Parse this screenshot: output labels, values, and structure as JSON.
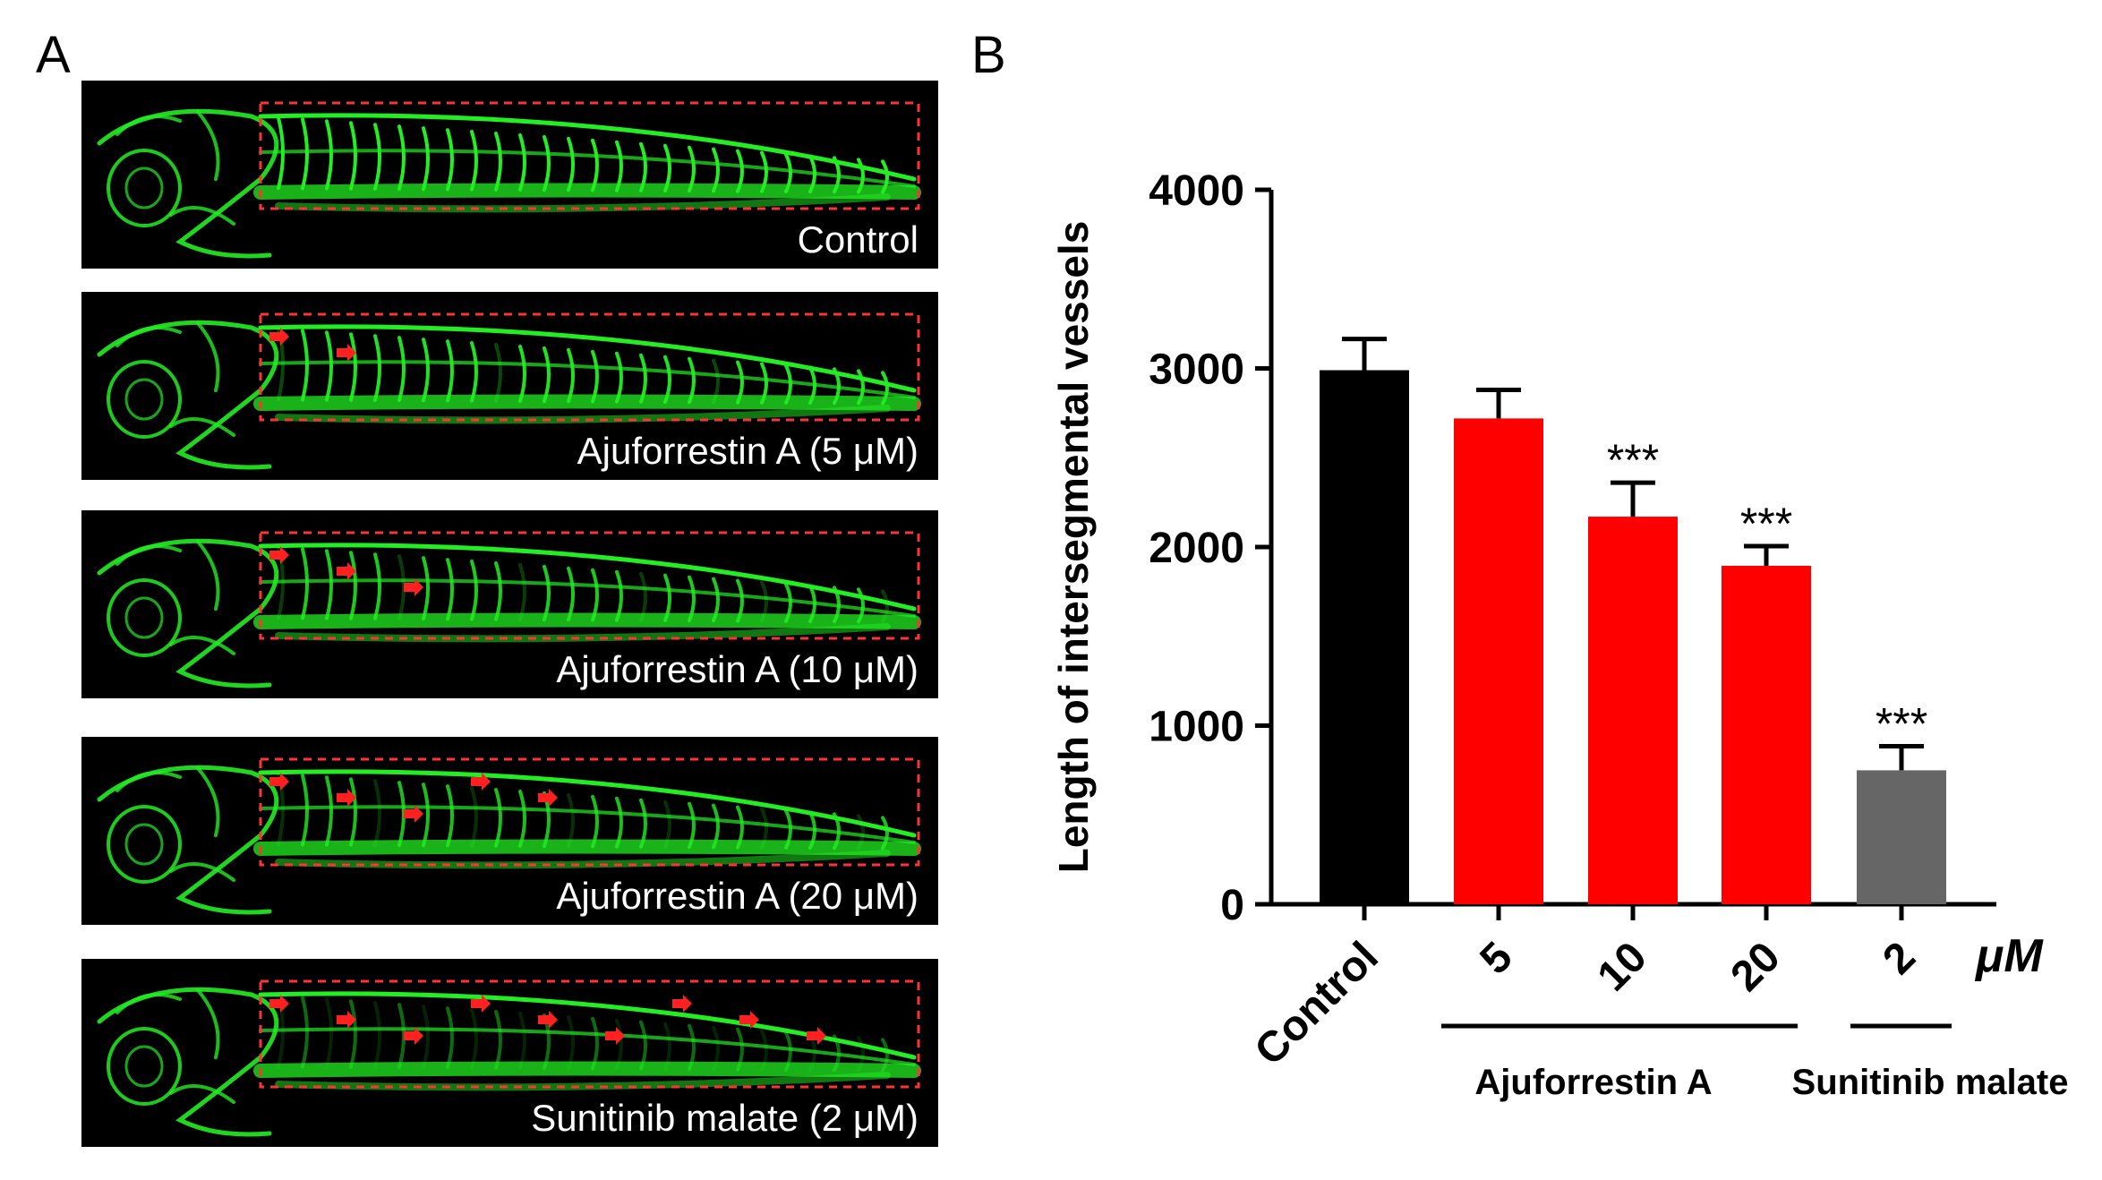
{
  "panel_a": {
    "letter": "A",
    "images": [
      {
        "label": "Control",
        "arrows": 0
      },
      {
        "label": "Ajuforrestin A (5 μM)",
        "arrows": 2
      },
      {
        "label": "Ajuforrestin A (10 μM)",
        "arrows": 3
      },
      {
        "label": "Ajuforrestin A (20 μM)",
        "arrows": 5
      },
      {
        "label": "Sunitinib malate (2 μM)",
        "arrows": 9
      }
    ],
    "colors": {
      "vessel": "#22ee22",
      "arrow": "#ff2020",
      "box": "#ff3333",
      "background": "#000000"
    }
  },
  "panel_b": {
    "letter": "B",
    "unit_label": "μM",
    "group_labels": [
      "Ajuforrestin A",
      "Sunitinib malate"
    ]
  },
  "chart_data": {
    "type": "bar",
    "ylabel": "Length of intersegmental vessels",
    "xlabel": "",
    "ylim": [
      0,
      4000
    ],
    "yticks": [
      0,
      1000,
      2000,
      3000,
      4000
    ],
    "categories": [
      "Control",
      "5",
      "10",
      "20",
      "2"
    ],
    "values": [
      2990,
      2720,
      2170,
      1895,
      750
    ],
    "errors": [
      175,
      160,
      190,
      110,
      135
    ],
    "significance": [
      "",
      "",
      "***",
      "***",
      "***"
    ],
    "colors": [
      "#000000",
      "#ff0000",
      "#ff0000",
      "#ff0000",
      "#666666"
    ],
    "legend": "none",
    "grid": false
  }
}
